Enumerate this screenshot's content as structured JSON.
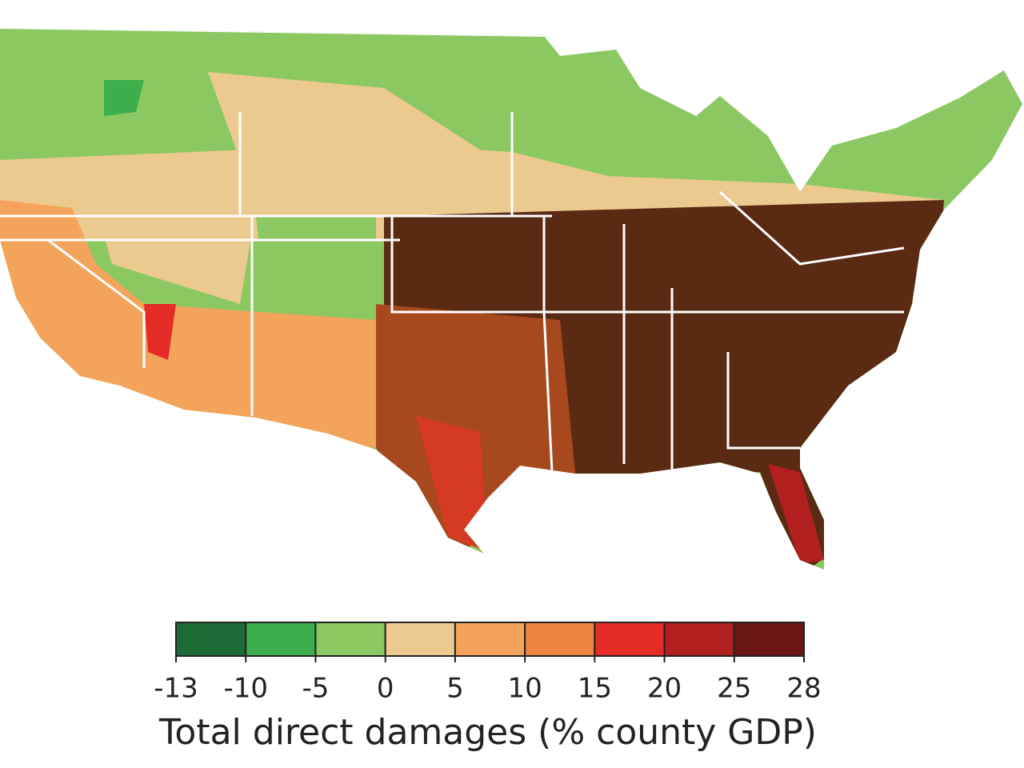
{
  "legend": {
    "title": "Total direct damages (% county GDP)",
    "ticks": [
      -13,
      -10,
      -5,
      0,
      5,
      10,
      15,
      20,
      25,
      28
    ],
    "colors": [
      "#1e6b35",
      "#3cae4c",
      "#8cc862",
      "#ecc98f",
      "#f4a45a",
      "#ec8540",
      "#e52b25",
      "#b11f1f",
      "#6b1515"
    ]
  }
}
